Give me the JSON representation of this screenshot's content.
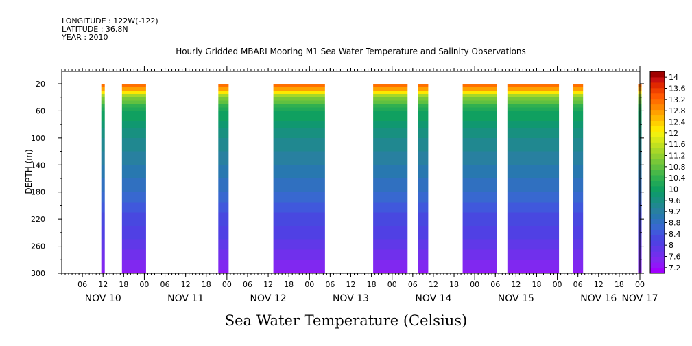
{
  "meta": {
    "longitude": "LONGITUDE : 122W(-122)",
    "latitude": "LATITUDE : 36.8N",
    "year": "YEAR : 2010"
  },
  "chart_data": {
    "type": "heatmap",
    "title": "Hourly Gridded MBARI Mooring M1 Sea Water Temperature and Salinity Observations",
    "subtitle": "Sea Water Temperature (Celsius)",
    "xlabel": "",
    "ylabel": "DEPTH (m)",
    "ylim": [
      20,
      300
    ],
    "y_inverted": true,
    "y_ticks": [
      20,
      60,
      100,
      140,
      180,
      220,
      260,
      300
    ],
    "x_range_hours": [
      0,
      168
    ],
    "x_start": "2010-11-10 00:00",
    "x_hour_ticks": [
      {
        "h": 6,
        "label": "06"
      },
      {
        "h": 12,
        "label": "12"
      },
      {
        "h": 18,
        "label": "18"
      },
      {
        "h": 24,
        "label": "00"
      },
      {
        "h": 30,
        "label": "06"
      },
      {
        "h": 36,
        "label": "12"
      },
      {
        "h": 42,
        "label": "18"
      },
      {
        "h": 48,
        "label": "00"
      },
      {
        "h": 54,
        "label": "06"
      },
      {
        "h": 60,
        "label": "12"
      },
      {
        "h": 66,
        "label": "18"
      },
      {
        "h": 72,
        "label": "00"
      },
      {
        "h": 78,
        "label": "06"
      },
      {
        "h": 84,
        "label": "12"
      },
      {
        "h": 90,
        "label": "18"
      },
      {
        "h": 96,
        "label": "00"
      },
      {
        "h": 102,
        "label": "06"
      },
      {
        "h": 108,
        "label": "12"
      },
      {
        "h": 114,
        "label": "18"
      },
      {
        "h": 120,
        "label": "00"
      },
      {
        "h": 126,
        "label": "06"
      },
      {
        "h": 132,
        "label": "12"
      },
      {
        "h": 138,
        "label": "18"
      },
      {
        "h": 144,
        "label": "00"
      },
      {
        "h": 150,
        "label": "06"
      },
      {
        "h": 156,
        "label": "12"
      },
      {
        "h": 162,
        "label": "18"
      },
      {
        "h": 168,
        "label": "00"
      }
    ],
    "x_day_labels": [
      {
        "h": 12,
        "label": "NOV 10"
      },
      {
        "h": 36,
        "label": "NOV 11"
      },
      {
        "h": 60,
        "label": "NOV 12"
      },
      {
        "h": 84,
        "label": "NOV 13"
      },
      {
        "h": 108,
        "label": "NOV 14"
      },
      {
        "h": 132,
        "label": "NOV 15"
      },
      {
        "h": 156,
        "label": "NOV 16"
      },
      {
        "h": 168,
        "label": "NOV 17"
      }
    ],
    "data_segments": [
      {
        "start_h": 11.5,
        "end_h": 12.5
      },
      {
        "start_h": 17.5,
        "end_h": 24.5
      },
      {
        "start_h": 45.5,
        "end_h": 48.5
      },
      {
        "start_h": 61.5,
        "end_h": 76.5
      },
      {
        "start_h": 90.5,
        "end_h": 100.5
      },
      {
        "start_h": 103.5,
        "end_h": 106.5
      },
      {
        "start_h": 116.5,
        "end_h": 126.5
      },
      {
        "start_h": 129.5,
        "end_h": 144.5
      },
      {
        "start_h": 148.5,
        "end_h": 151.5
      },
      {
        "start_h": 167.5,
        "end_h": 168.5
      }
    ],
    "depth_profile": [
      {
        "depth": 20,
        "temp": 13.6
      },
      {
        "depth": 30,
        "temp": 12.6
      },
      {
        "depth": 40,
        "temp": 11.2
      },
      {
        "depth": 60,
        "temp": 10.2
      },
      {
        "depth": 100,
        "temp": 9.6
      },
      {
        "depth": 140,
        "temp": 9.2
      },
      {
        "depth": 180,
        "temp": 8.8
      },
      {
        "depth": 220,
        "temp": 8.3
      },
      {
        "depth": 260,
        "temp": 7.9
      },
      {
        "depth": 300,
        "temp": 7.3
      }
    ],
    "colorbar": {
      "labels": [
        "14",
        "13.6",
        "13.2",
        "12.8",
        "12.4",
        "12",
        "11.6",
        "11.2",
        "10.8",
        "10.4",
        "10",
        "9.6",
        "9.2",
        "8.8",
        "8.4",
        "8",
        "7.6",
        "7.2"
      ],
      "levels": [
        7.0,
        7.2,
        7.4,
        7.6,
        7.8,
        8.0,
        8.2,
        8.4,
        8.6,
        8.8,
        9.0,
        9.2,
        9.4,
        9.6,
        9.8,
        10.0,
        10.2,
        10.4,
        10.6,
        10.8,
        11.0,
        11.2,
        11.4,
        11.6,
        11.8,
        12.0,
        12.2,
        12.4,
        12.6,
        12.8,
        13.0,
        13.2,
        13.4,
        13.6,
        13.8,
        14.0,
        14.2
      ],
      "colors": [
        "#a000ff",
        "#9018f8",
        "#8028f0",
        "#7030ec",
        "#6038e8",
        "#5040e4",
        "#4848e0",
        "#4058dc",
        "#3868d0",
        "#3070c0",
        "#2878b0",
        "#2880a0",
        "#208890",
        "#189080",
        "#109870",
        "#10a060",
        "#20a858",
        "#30b050",
        "#48b848",
        "#60c040",
        "#78c838",
        "#90d030",
        "#a8d828",
        "#c0e020",
        "#d8e818",
        "#f0f010",
        "#ffe800",
        "#ffd000",
        "#ffb800",
        "#ffa000",
        "#ff8800",
        "#ff7000",
        "#ff5800",
        "#f04000",
        "#e02800",
        "#c81010",
        "#a00000"
      ]
    }
  }
}
